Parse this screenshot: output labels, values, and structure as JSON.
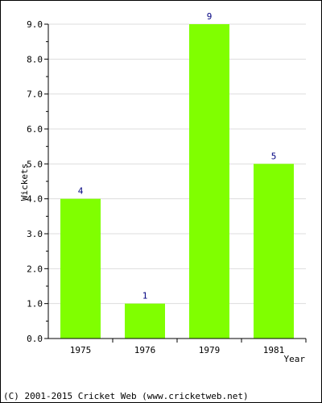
{
  "chart_data": {
    "type": "bar",
    "categories": [
      "1975",
      "1976",
      "1979",
      "1981"
    ],
    "values": [
      4,
      1,
      9,
      5
    ],
    "data_labels": [
      "4",
      "1",
      "9",
      "5"
    ],
    "xlabel": "Year",
    "ylabel": "Wickets",
    "ylim": [
      0,
      9
    ],
    "yticks": [
      "0.0",
      "1.0",
      "2.0",
      "3.0",
      "4.0",
      "5.0",
      "6.0",
      "7.0",
      "8.0",
      "9.0"
    ],
    "grid": true,
    "bar_color": "#80ff00",
    "grid_color": "#dddddd",
    "label_color": "#000080"
  },
  "footer": {
    "copyright": "(C) 2001-2015 Cricket Web (www.cricketweb.net)"
  }
}
